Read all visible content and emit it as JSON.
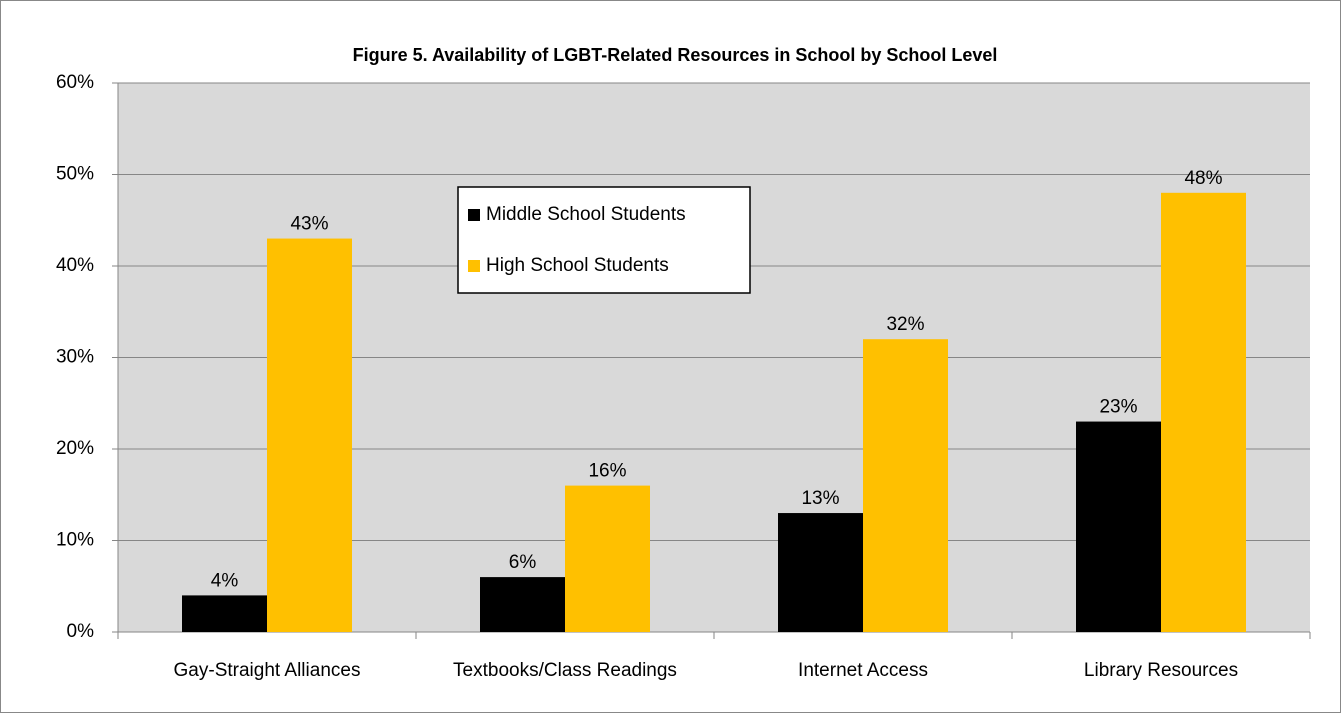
{
  "chart_data": {
    "type": "bar",
    "title": "Figure 5. Availability  of LGBT-Related Resources in School by School Level",
    "categories": [
      "Gay-Straight Alliances",
      "Textbooks/Class Readings",
      "Internet Access",
      "Library Resources"
    ],
    "series": [
      {
        "name": "Middle School Students",
        "color": "#000000",
        "values": [
          4,
          6,
          13,
          23
        ],
        "value_labels": [
          "4%",
          "6%",
          "13%",
          "23%"
        ]
      },
      {
        "name": "High School Students",
        "color": "#ffc000",
        "values": [
          43,
          16,
          32,
          48
        ],
        "value_labels": [
          "43%",
          "16%",
          "32%",
          "48%"
        ]
      }
    ],
    "ylim": [
      0,
      60
    ],
    "yticks": [
      {
        "value": 0,
        "label": "0%"
      },
      {
        "value": 10,
        "label": "10%"
      },
      {
        "value": 20,
        "label": "20%"
      },
      {
        "value": 30,
        "label": "30%"
      },
      {
        "value": 40,
        "label": "40%"
      },
      {
        "value": 50,
        "label": "50%"
      },
      {
        "value": 60,
        "label": "60%"
      }
    ],
    "grid": true,
    "legend": "center"
  }
}
